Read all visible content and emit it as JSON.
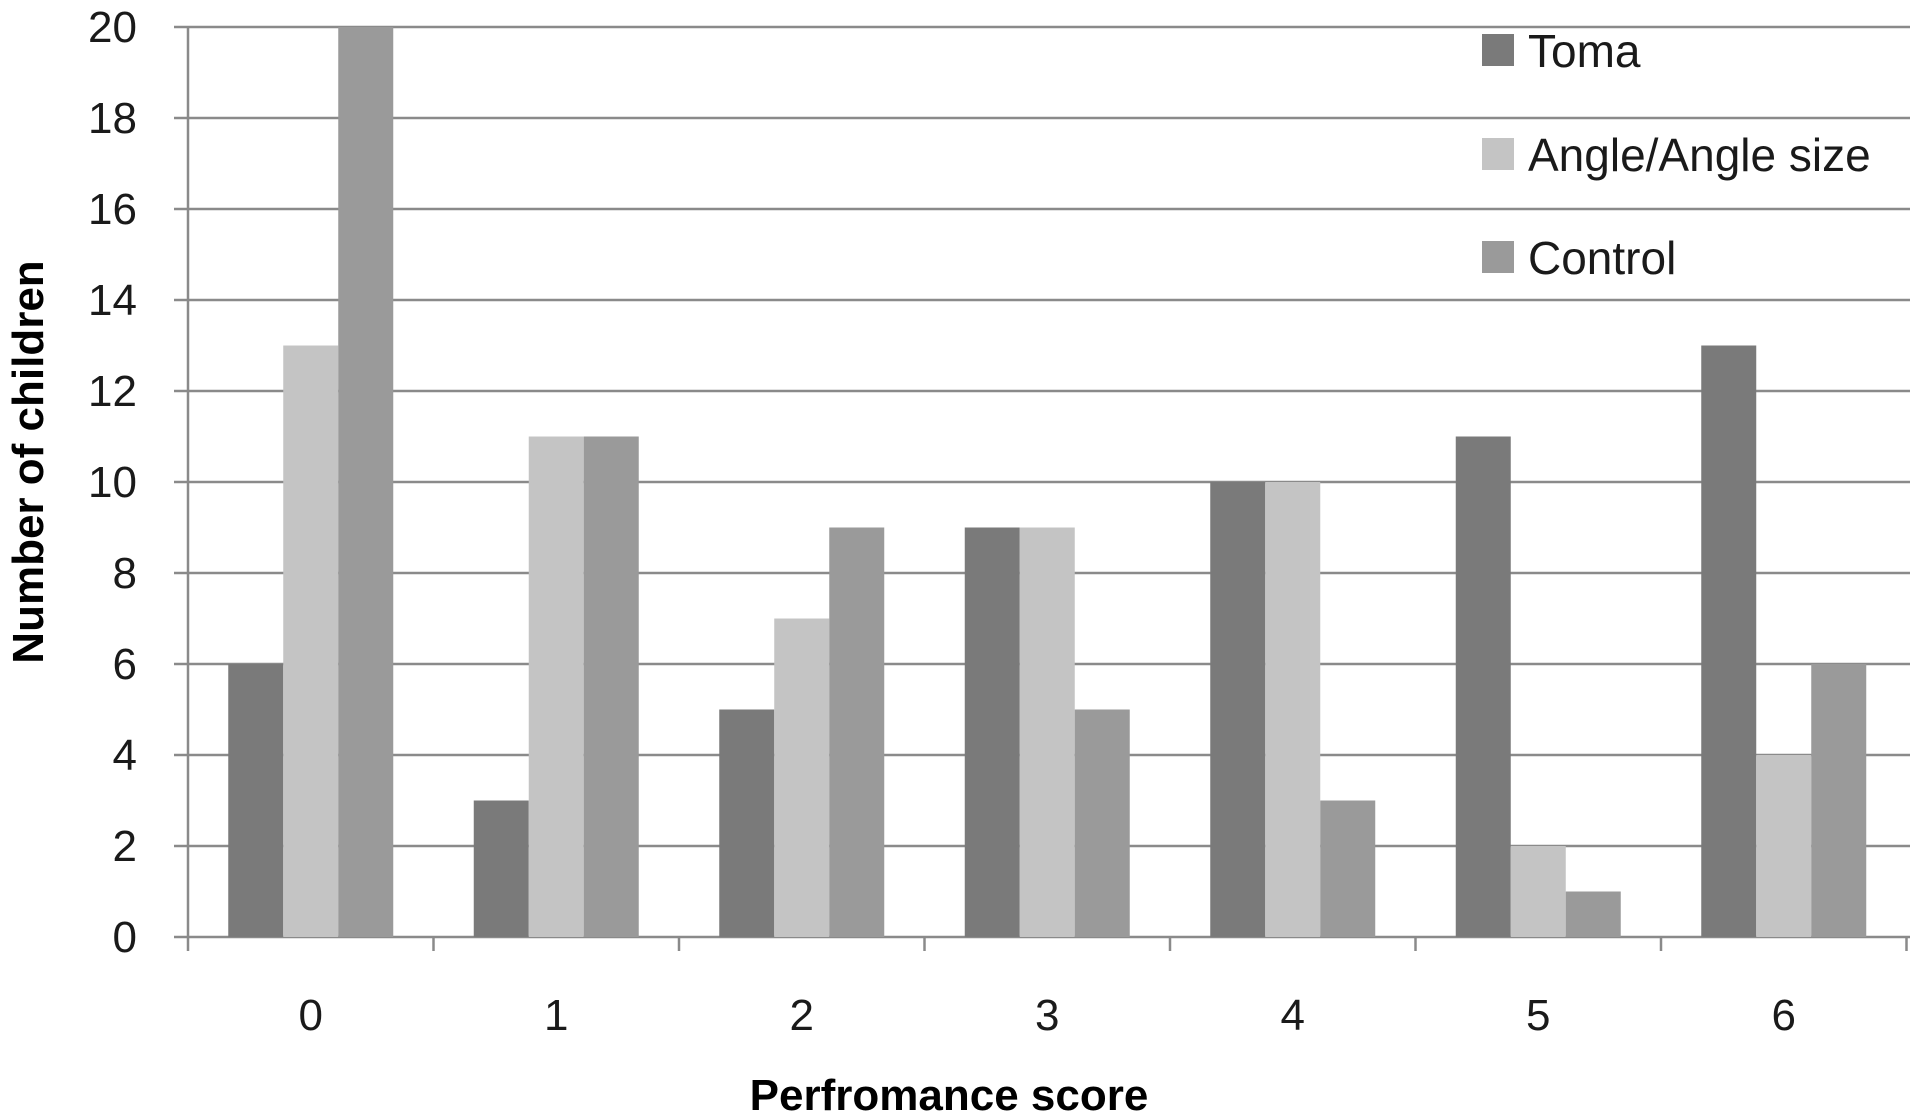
{
  "chart_data": {
    "type": "bar",
    "title": "",
    "xlabel": "Perfromance score",
    "ylabel": "Number of children",
    "categories": [
      "0",
      "1",
      "2",
      "3",
      "4",
      "5",
      "6"
    ],
    "ylim": [
      0,
      20
    ],
    "yticks": [
      0,
      2,
      4,
      6,
      8,
      10,
      12,
      14,
      16,
      18,
      20
    ],
    "grid": true,
    "legend_position": "top-right",
    "series": [
      {
        "name": "Toma",
        "values": [
          6,
          3,
          5,
          9,
          10,
          11,
          13
        ],
        "color": "#7a7a7a"
      },
      {
        "name": "Angle/Angle size",
        "values": [
          13,
          11,
          7,
          9,
          10,
          2,
          4
        ],
        "color": "#c4c4c4"
      },
      {
        "name": "Control",
        "values": [
          20,
          11,
          9,
          5,
          3,
          1,
          6
        ],
        "color": "#9a9a9a"
      }
    ]
  }
}
